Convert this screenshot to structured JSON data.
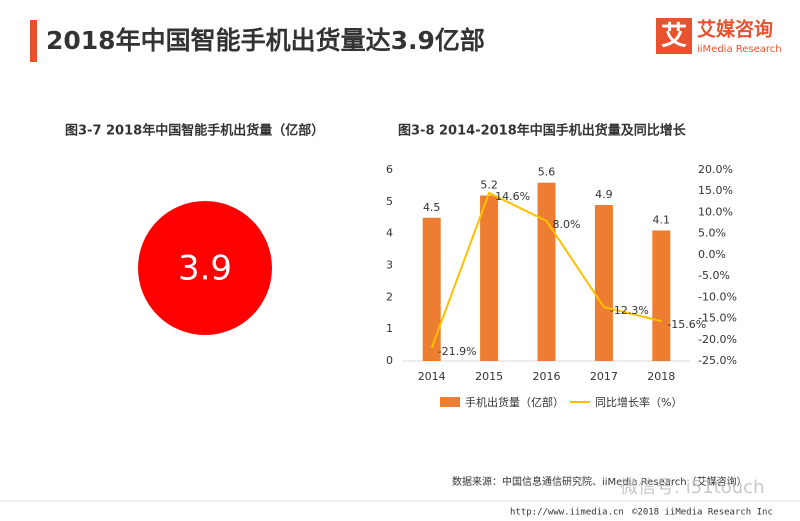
{
  "header": {
    "title": "2018年中国智能手机出货量达3.9亿部",
    "logo": "艾媒咨询",
    "logo_sub": "iiMedia Research",
    "logo_mark": "艾"
  },
  "chart_data": [
    {
      "type": "number",
      "title": "图3-7 2018年中国智能手机出货量（亿部）",
      "value": 3.9,
      "color": "#ff0000"
    },
    {
      "type": "bar",
      "title": "图3-8 2014-2018年中国手机出货量及同比增长",
      "categories": [
        "2014",
        "2015",
        "2016",
        "2017",
        "2018"
      ],
      "series": [
        {
          "name": "手机出货量（亿部）",
          "type": "bar",
          "color": "#ed7d31",
          "values": [
            4.5,
            5.2,
            5.6,
            4.9,
            4.1
          ]
        },
        {
          "name": "同比增长率（%）",
          "type": "line",
          "axis": "y2",
          "color": "#ffc000",
          "values": [
            -21.9,
            14.6,
            8.0,
            -12.3,
            -15.6
          ],
          "value_labels": [
            "-21.9%",
            "14.6%",
            "8.0%",
            "-12.3%",
            "-15.6%"
          ]
        }
      ],
      "ylim": [
        0,
        6
      ],
      "yticks": [
        0,
        1,
        2,
        3,
        4,
        5,
        6
      ],
      "y2lim": [
        -25,
        20
      ],
      "y2ticks": [
        {
          "value": -25,
          "label": "-25.0%"
        },
        {
          "value": -20,
          "label": "-20.0%"
        },
        {
          "value": -15,
          "label": "-15.0%"
        },
        {
          "value": -10,
          "label": "-10.0%"
        },
        {
          "value": -5,
          "label": "-5.0%"
        },
        {
          "value": 0,
          "label": "0.0%"
        },
        {
          "value": 5,
          "label": "5.0%"
        },
        {
          "value": 10,
          "label": "10.0%"
        },
        {
          "value": 15,
          "label": "15.0%"
        },
        {
          "value": 20,
          "label": "20.0%"
        }
      ],
      "grid": false
    }
  ],
  "footer": {
    "source": "数据来源：中国信息通信研究院、iiMedia Research（艾媒咨询）",
    "watermark": "微信号: i51touch",
    "url": "http://www.iimedia.cn",
    "copyright": "©2018  iiMedia Research  Inc"
  }
}
